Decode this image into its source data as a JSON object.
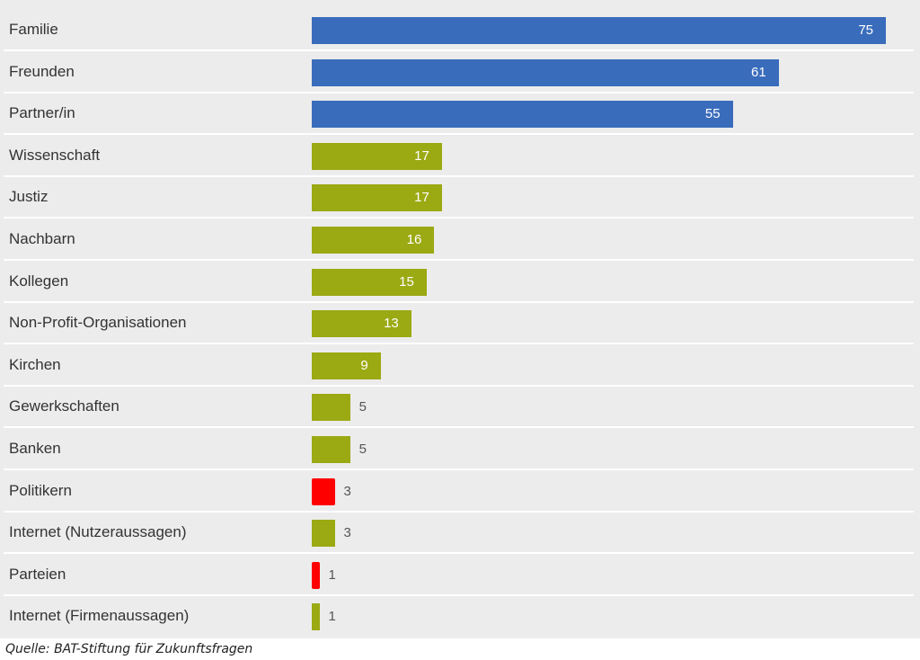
{
  "colors": {
    "blue": "#3a6cbc",
    "olive": "#9ba913",
    "red": "#ff0000"
  },
  "chart_data": {
    "type": "bar",
    "orientation": "horizontal",
    "categories": [
      "Familie",
      "Freunden",
      "Partner/in",
      "Wissenschaft",
      "Justiz",
      "Nachbarn",
      "Kollegen",
      "Non-Profit-Organisationen",
      "Kirchen",
      "Gewerkschaften",
      "Banken",
      "Politikern",
      "Internet (Nutzeraussagen)",
      "Parteien",
      "Internet (Firmenaussagen)"
    ],
    "values": [
      75,
      61,
      55,
      17,
      17,
      16,
      15,
      13,
      9,
      5,
      5,
      3,
      3,
      1,
      1
    ],
    "bar_colors": [
      "blue",
      "blue",
      "blue",
      "olive",
      "olive",
      "olive",
      "olive",
      "olive",
      "olive",
      "olive",
      "olive",
      "red",
      "olive",
      "red",
      "olive"
    ],
    "xlim": [
      0,
      75
    ],
    "data_labels": true,
    "grid": false,
    "legend": "none"
  },
  "source": "Quelle: BAT-Stiftung für Zukunftsfragen"
}
